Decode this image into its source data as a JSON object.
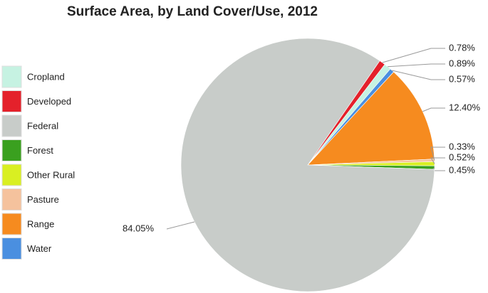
{
  "chart_data": {
    "type": "pie",
    "title": "Surface Area, by Land Cover/Use, 2012",
    "categories": [
      "Cropland",
      "Developed",
      "Federal",
      "Forest",
      "Other Rural",
      "Pasture",
      "Range",
      "Water"
    ],
    "values": [
      0.89,
      0.78,
      84.05,
      0.45,
      0.52,
      0.33,
      12.4,
      0.57
    ],
    "value_labels": [
      "0.89%",
      "0.78%",
      "84.05%",
      "0.45%",
      "0.52%",
      "0.33%",
      "12.40%",
      "0.57%"
    ],
    "colors": [
      "#c6f2e2",
      "#e4212b",
      "#c8ccc9",
      "#3aa01f",
      "#d9ef22",
      "#f5c29d",
      "#f68b1f",
      "#4a8fe0"
    ],
    "legend": "left"
  }
}
